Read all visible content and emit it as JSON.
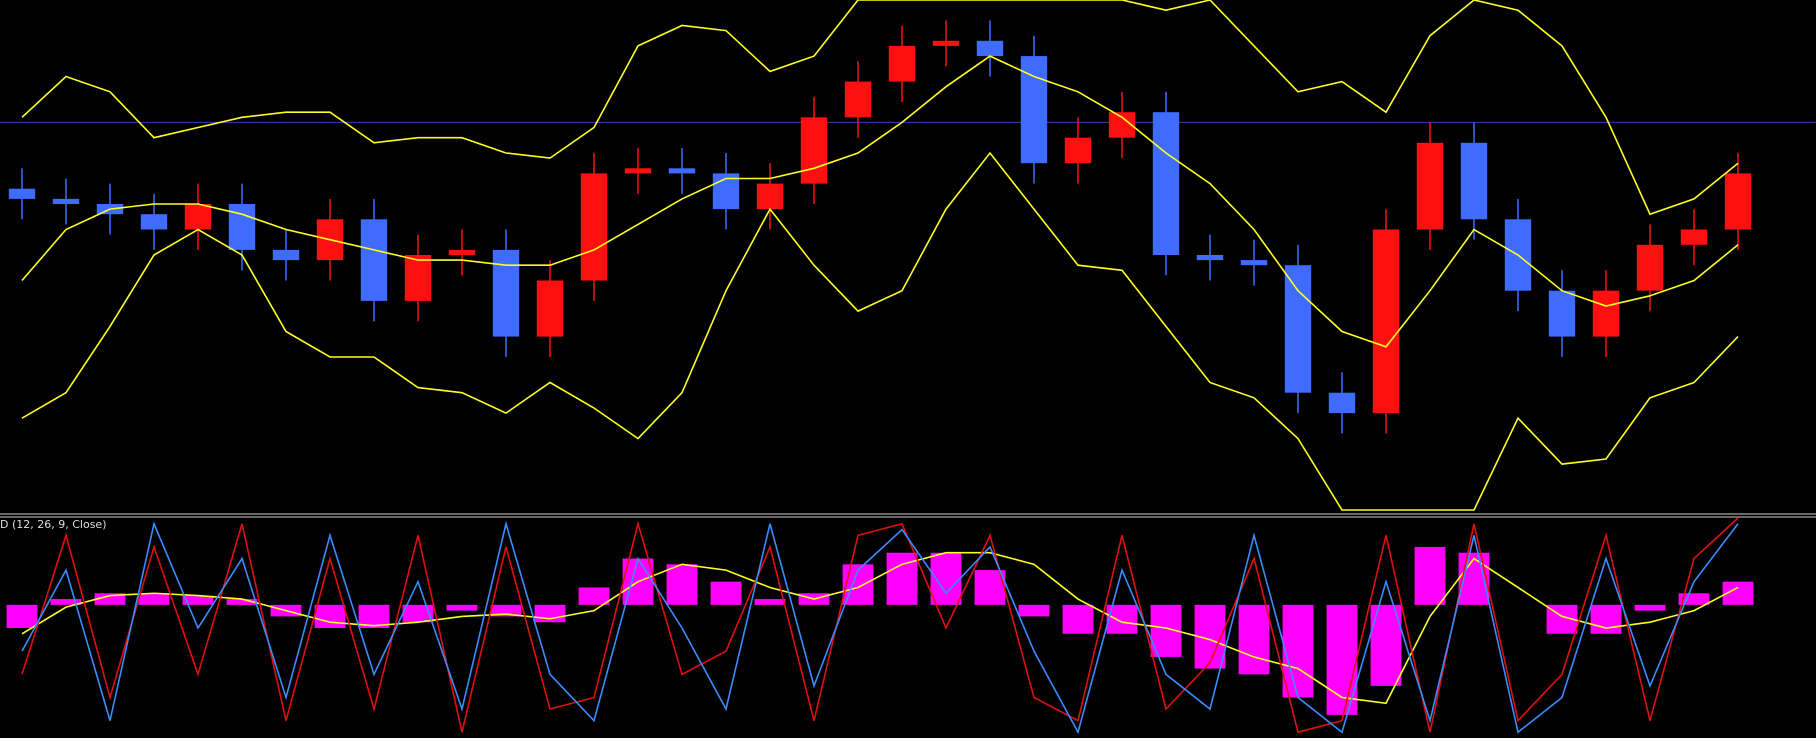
{
  "chart_data": [
    {
      "type": "candlestick",
      "open": [
        63,
        61,
        60,
        58,
        55,
        60,
        51,
        49,
        57,
        41,
        50,
        51,
        34,
        45,
        66,
        67,
        66,
        59,
        64,
        77,
        84,
        91,
        92,
        89,
        68,
        73,
        78,
        50,
        49,
        48,
        23,
        19,
        55,
        72,
        57,
        43,
        34,
        43,
        52,
        55
      ],
      "high": [
        67,
        65,
        64,
        62,
        64,
        64,
        55,
        61,
        61,
        54,
        55,
        55,
        49,
        70,
        71,
        71,
        70,
        68,
        81,
        88,
        95,
        96,
        96,
        93,
        77,
        82,
        82,
        54,
        53,
        52,
        27,
        59,
        76,
        76,
        61,
        47,
        47,
        56,
        59,
        70
      ],
      "low": [
        57,
        56,
        54,
        51,
        51,
        47,
        45,
        45,
        37,
        37,
        46,
        30,
        30,
        41,
        62,
        62,
        55,
        55,
        60,
        73,
        80,
        87,
        85,
        64,
        64,
        69,
        46,
        45,
        44,
        19,
        15,
        15,
        51,
        53,
        39,
        30,
        30,
        39,
        48,
        51
      ],
      "close": [
        61,
        60,
        58,
        55,
        60,
        51,
        49,
        57,
        41,
        50,
        51,
        34,
        45,
        66,
        67,
        66,
        59,
        64,
        77,
        84,
        91,
        92,
        89,
        68,
        73,
        78,
        50,
        49,
        48,
        23,
        19,
        55,
        72,
        57,
        43,
        34,
        43,
        52,
        55,
        66
      ],
      "up_color": "#ff1010",
      "down_color": "#3f6cff",
      "ylim": [
        0,
        100
      ],
      "level": 76,
      "level_color": "#3a3ab0",
      "series": [
        {
          "color": "#ffff22",
          "values": [
            77,
            85,
            82,
            73,
            75,
            77,
            78,
            78,
            72,
            73,
            73,
            70,
            69,
            75,
            91,
            95,
            94,
            86,
            89,
            100,
            100,
            100,
            100,
            100,
            100,
            100,
            98,
            100,
            91,
            82,
            84,
            78,
            93,
            100,
            98,
            91,
            77,
            58,
            61,
            68
          ]
        },
        {
          "color": "#ffff22",
          "values": [
            45,
            55,
            59,
            60,
            60,
            58,
            55,
            53,
            51,
            49,
            49,
            48,
            48,
            51,
            56,
            61,
            65,
            65,
            67,
            70,
            76,
            83,
            89,
            85,
            82,
            77,
            70,
            64,
            55,
            43,
            35,
            32,
            43,
            55,
            50,
            43,
            40,
            42,
            45,
            52
          ]
        },
        {
          "color": "#ffff22",
          "values": [
            18,
            23,
            36,
            50,
            55,
            50,
            35,
            30,
            30,
            24,
            23,
            19,
            25,
            20,
            14,
            23,
            43,
            59,
            48,
            39,
            43,
            59,
            70,
            59,
            48,
            47,
            36,
            25,
            22,
            14,
            0,
            0,
            0,
            0,
            18,
            9,
            10,
            22,
            25,
            34
          ]
        }
      ]
    },
    {
      "type": "macd",
      "title": "D (12, 26, 9, Close)",
      "ylim": [
        -115,
        75
      ],
      "histogram": {
        "color": "#ff00ff",
        "values": [
          -20,
          5,
          10,
          10,
          8,
          5,
          -10,
          -20,
          -20,
          -15,
          -5,
          -10,
          -15,
          15,
          40,
          35,
          20,
          5,
          10,
          35,
          45,
          45,
          30,
          -10,
          -25,
          -25,
          -45,
          -55,
          -60,
          -80,
          -95,
          -70,
          50,
          45,
          0,
          -25,
          -25,
          -5,
          10,
          20
        ]
      },
      "series": [
        {
          "color": "#ffff22",
          "values": [
            -25,
            -2,
            8,
            10,
            8,
            5,
            -5,
            -15,
            -18,
            -15,
            -10,
            -8,
            -12,
            -5,
            20,
            35,
            30,
            15,
            5,
            15,
            35,
            45,
            45,
            35,
            5,
            -15,
            -20,
            -30,
            -45,
            -55,
            -80,
            -85,
            -10,
            40,
            15,
            -10,
            -20,
            -15,
            -5,
            15
          ]
        },
        {
          "color": "#e01010",
          "values": [
            -60,
            60,
            -80,
            50,
            -60,
            70,
            -100,
            40,
            -90,
            60,
            -110,
            50,
            -90,
            -80,
            70,
            -60,
            -40,
            50,
            -100,
            60,
            70,
            -20,
            60,
            -80,
            -100,
            60,
            -90,
            -50,
            40,
            -110,
            -100,
            60,
            -110,
            70,
            -100,
            -60,
            60,
            -100,
            40,
            75
          ]
        },
        {
          "color": "#3a8cff",
          "values": [
            -40,
            30,
            -100,
            70,
            -20,
            40,
            -80,
            60,
            -60,
            20,
            -90,
            70,
            -60,
            -100,
            40,
            -20,
            -90,
            70,
            -70,
            30,
            65,
            10,
            50,
            -40,
            -110,
            30,
            -60,
            -90,
            60,
            -80,
            -110,
            20,
            -100,
            60,
            -110,
            -80,
            40,
            -70,
            20,
            70
          ]
        }
      ]
    }
  ]
}
